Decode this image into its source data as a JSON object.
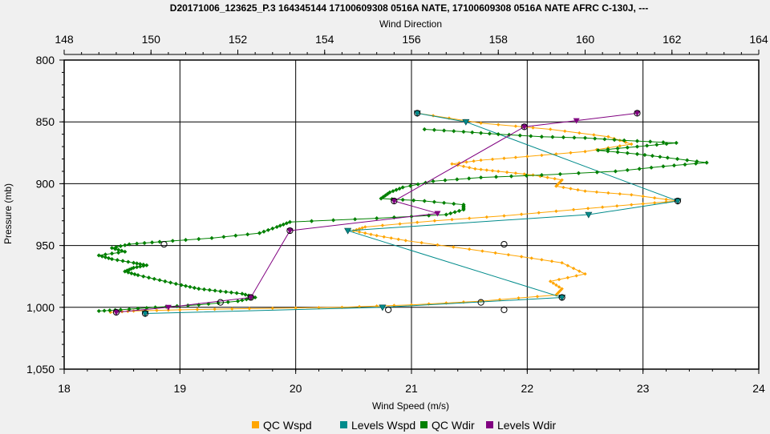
{
  "chart_data": {
    "type": "line",
    "title": "D20171006_123625_P.3 164345144 17100609308 0516A NATE, 17100609308 0516A NATE AFRC C-130J, ---",
    "x_bottom": {
      "label": "Wind Speed (m/s)",
      "range": [
        18,
        24
      ],
      "ticks": [
        18,
        19,
        20,
        21,
        22,
        23,
        24
      ],
      "tick_labels": [
        "18",
        "19",
        "20",
        "21",
        "22",
        "23",
        "24"
      ]
    },
    "x_top": {
      "label": "Wind Direction",
      "range": [
        148,
        164
      ],
      "ticks": [
        148,
        150,
        152,
        154,
        156,
        158,
        160,
        162,
        164
      ],
      "tick_labels": [
        "148",
        "150",
        "152",
        "154",
        "156",
        "158",
        "160",
        "162",
        "164"
      ]
    },
    "y": {
      "label": "Pressure (mb)",
      "range": [
        800,
        1050
      ],
      "inverted": true,
      "ticks": [
        800,
        850,
        900,
        950,
        1000,
        1050
      ],
      "tick_labels": [
        "800",
        "850",
        "900",
        "950",
        "1,000",
        "1,050"
      ]
    },
    "grid": true,
    "legend_position": "bottom",
    "colors": {
      "qc_wspd": "#ffa500",
      "levels_wspd": "#008b8b",
      "qc_wdir": "#008000",
      "levels_wdir": "#800080"
    },
    "series": [
      {
        "name": "QC Wspd",
        "axis": "bottom",
        "marker": "diamond-small",
        "points": [
          [
            21.05,
            843
          ],
          [
            21.6,
            851
          ],
          [
            22.2,
            856
          ],
          [
            22.7,
            862
          ],
          [
            22.9,
            868
          ],
          [
            22.5,
            874
          ],
          [
            22.0,
            878
          ],
          [
            21.6,
            881
          ],
          [
            21.35,
            884
          ],
          [
            21.55,
            888
          ],
          [
            21.75,
            890
          ],
          [
            22.05,
            893
          ],
          [
            22.3,
            897
          ],
          [
            22.25,
            902
          ],
          [
            22.5,
            906
          ],
          [
            22.9,
            909
          ],
          [
            23.3,
            914
          ],
          [
            22.9,
            917
          ],
          [
            22.4,
            921
          ],
          [
            21.8,
            926
          ],
          [
            21.2,
            930
          ],
          [
            20.6,
            935
          ],
          [
            20.5,
            938
          ],
          [
            20.7,
            942
          ],
          [
            20.95,
            946
          ],
          [
            21.5,
            953
          ],
          [
            21.95,
            959
          ],
          [
            22.3,
            964
          ],
          [
            22.5,
            973
          ],
          [
            22.2,
            979
          ],
          [
            22.3,
            985
          ],
          [
            22.25,
            990
          ],
          [
            21.6,
            995
          ],
          [
            21.0,
            998
          ],
          [
            20.4,
            1000
          ],
          [
            19.6,
            1001
          ],
          [
            19.0,
            1002
          ],
          [
            18.6,
            1003
          ],
          [
            18.4,
            1004
          ]
        ]
      },
      {
        "name": "Levels Wspd",
        "axis": "bottom",
        "marker": "triangle",
        "points": [
          [
            21.05,
            843
          ],
          [
            21.47,
            850
          ],
          [
            23.3,
            914
          ],
          [
            22.53,
            925
          ],
          [
            20.45,
            938
          ],
          [
            22.3,
            992
          ],
          [
            20.75,
            1000
          ],
          [
            18.7,
            1005
          ]
        ]
      },
      {
        "name": "QC Wdir",
        "axis": "top",
        "marker": "diamond",
        "points": [
          [
            156.3,
            856
          ],
          [
            157.2,
            858
          ],
          [
            158.0,
            860
          ],
          [
            159.0,
            862
          ],
          [
            160.0,
            863
          ],
          [
            160.9,
            865
          ],
          [
            162.1,
            867
          ],
          [
            161.2,
            870
          ],
          [
            160.3,
            873
          ],
          [
            161.2,
            876
          ],
          [
            161.9,
            879
          ],
          [
            162.8,
            883
          ],
          [
            161.8,
            886
          ],
          [
            160.7,
            890
          ],
          [
            159.0,
            893
          ],
          [
            157.6,
            895
          ],
          [
            156.5,
            898
          ],
          [
            155.8,
            903
          ],
          [
            155.5,
            907
          ],
          [
            155.3,
            912
          ],
          [
            156.3,
            914
          ],
          [
            157.2,
            917
          ],
          [
            157.2,
            921
          ],
          [
            156.8,
            925
          ],
          [
            155.2,
            928
          ],
          [
            153.2,
            931
          ],
          [
            152.9,
            935
          ],
          [
            152.5,
            940
          ],
          [
            151.4,
            944
          ],
          [
            150.2,
            947
          ],
          [
            149.5,
            949
          ],
          [
            149.1,
            952
          ],
          [
            149.4,
            955
          ],
          [
            148.8,
            958
          ],
          [
            149.1,
            961
          ],
          [
            149.6,
            964
          ],
          [
            149.9,
            966
          ],
          [
            149.6,
            968
          ],
          [
            149.4,
            971
          ],
          [
            149.7,
            974
          ],
          [
            150.2,
            978
          ],
          [
            150.7,
            982
          ],
          [
            151.1,
            985
          ],
          [
            151.6,
            987
          ],
          [
            152.1,
            989
          ],
          [
            152.4,
            992
          ],
          [
            152.0,
            995
          ],
          [
            151.1,
            998
          ],
          [
            150.1,
            1000
          ],
          [
            149.3,
            1002
          ],
          [
            148.8,
            1003
          ]
        ]
      },
      {
        "name": "Levels Wdir",
        "axis": "top",
        "marker": "triangle-down",
        "points": [
          [
            161.2,
            843
          ],
          [
            159.8,
            849
          ],
          [
            158.6,
            854
          ],
          [
            155.6,
            914
          ],
          [
            156.6,
            924
          ],
          [
            153.2,
            938
          ],
          [
            152.3,
            992
          ],
          [
            150.4,
            1000
          ],
          [
            149.2,
            1004
          ]
        ]
      },
      {
        "name": "",
        "axis": "bottom",
        "marker": "circle",
        "line": false,
        "points": [
          [
            21.05,
            843
          ],
          [
            23.3,
            914
          ],
          [
            21.8,
            949
          ],
          [
            22.3,
            992
          ],
          [
            21.6,
            996
          ],
          [
            20.8,
            1002
          ],
          [
            21.8,
            1002
          ],
          [
            18.7,
            1005
          ]
        ]
      },
      {
        "name": "",
        "axis": "top",
        "marker": "circle",
        "line": false,
        "points": [
          [
            161.2,
            843
          ],
          [
            158.6,
            854
          ],
          [
            155.6,
            914
          ],
          [
            153.2,
            938
          ],
          [
            150.3,
            949
          ],
          [
            152.3,
            992
          ],
          [
            151.6,
            996
          ],
          [
            149.2,
            1004
          ]
        ]
      }
    ]
  }
}
